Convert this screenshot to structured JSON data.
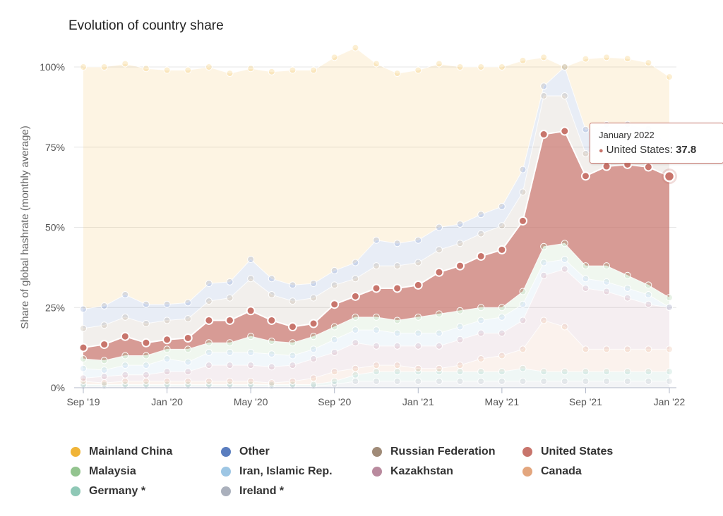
{
  "title": "Evolution of country share",
  "chart_data": {
    "type": "area",
    "stacked": true,
    "title": "Evolution of country share",
    "ylabel": "Share of global hashrate (monthly average)",
    "ylim": [
      0,
      100
    ],
    "yticks": [
      "0%",
      "25%",
      "50%",
      "75%",
      "100%"
    ],
    "xtick_labels": [
      "Sep '19",
      "Jan '20",
      "May '20",
      "Sep '20",
      "Jan '21",
      "May '21",
      "Sep '21",
      "Jan '22"
    ],
    "x": [
      "2019-09",
      "2019-10",
      "2019-11",
      "2019-12",
      "2020-01",
      "2020-02",
      "2020-03",
      "2020-04",
      "2020-05",
      "2020-06",
      "2020-07",
      "2020-08",
      "2020-09",
      "2020-10",
      "2020-11",
      "2020-12",
      "2021-01",
      "2021-02",
      "2021-03",
      "2021-04",
      "2021-05",
      "2021-06",
      "2021-07",
      "2021-08",
      "2021-09",
      "2021-10",
      "2021-11",
      "2021-12",
      "2022-01"
    ],
    "series": [
      {
        "name": "Ireland *",
        "color": "#aab0bc",
        "values": [
          0.5,
          0.5,
          0.5,
          0.5,
          0.5,
          0.5,
          0.5,
          0.5,
          0.5,
          0.5,
          0.5,
          0.5,
          1,
          2,
          2,
          2,
          2,
          2,
          2,
          2,
          2,
          2,
          2,
          2,
          2,
          2,
          2,
          2,
          2
        ]
      },
      {
        "name": "Germany *",
        "color": "#8fc8b6",
        "values": [
          0.5,
          0.5,
          0.5,
          0.5,
          0.5,
          0.5,
          0.5,
          0.5,
          0.5,
          0.5,
          0.5,
          0.5,
          1,
          2,
          3,
          3,
          3,
          3,
          3,
          3,
          3,
          4,
          3,
          3,
          3,
          3,
          3,
          3,
          3
        ]
      },
      {
        "name": "Canada",
        "color": "#e3a67e",
        "values": [
          1,
          0.5,
          1,
          1,
          1,
          1,
          1,
          1,
          1,
          0.5,
          1,
          2,
          3,
          2,
          2,
          2,
          1,
          1,
          2,
          4,
          5,
          6,
          16,
          14,
          7,
          7,
          7,
          7,
          7
        ]
      },
      {
        "name": "Kazakhstan",
        "color": "#b98a9e",
        "values": [
          1,
          2,
          2,
          2,
          3,
          3,
          5,
          5,
          5,
          5,
          5,
          6,
          6,
          8,
          6,
          6,
          7,
          7,
          8,
          8,
          7,
          9,
          14,
          18,
          19,
          18,
          16,
          14,
          13
        ]
      },
      {
        "name": "Iran, Islamic Rep.",
        "color": "#9dc6e4",
        "values": [
          3,
          2,
          3,
          3,
          4,
          3,
          4,
          4,
          4,
          4,
          3,
          3,
          4,
          4,
          5,
          4,
          4,
          4,
          4,
          4,
          5,
          5,
          4,
          3,
          3,
          3,
          3,
          3,
          0.1
        ]
      },
      {
        "name": "Malaysia",
        "color": "#93c48f",
        "values": [
          3,
          3,
          3,
          3,
          3,
          4,
          3,
          3,
          5,
          4,
          4,
          4,
          4,
          4,
          4,
          4,
          5,
          6,
          5,
          4,
          3,
          4,
          5,
          5,
          4,
          5,
          4,
          3,
          3
        ]
      },
      {
        "name": "United States",
        "color": "#c8756c",
        "values": [
          3.5,
          5,
          6,
          4,
          3,
          3.5,
          7,
          7,
          8,
          6.5,
          5,
          4,
          7,
          6.5,
          9,
          10,
          10,
          13,
          14,
          16,
          18,
          22,
          35,
          35,
          28,
          31,
          34.6,
          36.8,
          37.8
        ]
      },
      {
        "name": "Russian Federation",
        "color": "#a08b78",
        "values": [
          6,
          6,
          6,
          6,
          6,
          6,
          6,
          7,
          10,
          8,
          8,
          8,
          6,
          5.5,
          7,
          7,
          7,
          7,
          7,
          7,
          7.5,
          9,
          12,
          11,
          7,
          6,
          6,
          6,
          6
        ]
      },
      {
        "name": "Other",
        "color": "#5a7dbf",
        "values": [
          6,
          6,
          7,
          6,
          5,
          5,
          5.5,
          5,
          6,
          5,
          5,
          4.5,
          4.5,
          5,
          8,
          7,
          7,
          7,
          6,
          6,
          6,
          7,
          3,
          9,
          7.5,
          7,
          6.5,
          6,
          4
        ]
      },
      {
        "name": "Mainland China",
        "color": "#f0b437",
        "values": [
          75.5,
          74.5,
          72,
          73.5,
          73,
          72.5,
          67.5,
          65,
          59.5,
          64.5,
          67,
          66.5,
          66.5,
          67,
          55,
          53,
          53,
          51,
          49,
          46,
          43.5,
          34,
          9,
          0,
          22,
          21,
          20.5,
          20.5,
          21
        ]
      }
    ],
    "legend": [
      {
        "name": "Mainland China",
        "color": "#f0b437"
      },
      {
        "name": "Other",
        "color": "#5a7dbf"
      },
      {
        "name": "Russian Federation",
        "color": "#a08b78"
      },
      {
        "name": "United States",
        "color": "#c8756c"
      },
      {
        "name": "Malaysia",
        "color": "#93c48f"
      },
      {
        "name": "Iran, Islamic Rep.",
        "color": "#9dc6e4"
      },
      {
        "name": "Kazakhstan",
        "color": "#b98a9e"
      },
      {
        "name": "Canada",
        "color": "#e3a67e"
      },
      {
        "name": "Germany *",
        "color": "#8fc8b6"
      },
      {
        "name": "Ireland *",
        "color": "#aab0bc"
      }
    ],
    "highlight_series": "United States",
    "legend_position": "bottom",
    "grid": true
  },
  "tooltip": {
    "date": "January 2022",
    "series": "United States",
    "value": "37.8"
  }
}
